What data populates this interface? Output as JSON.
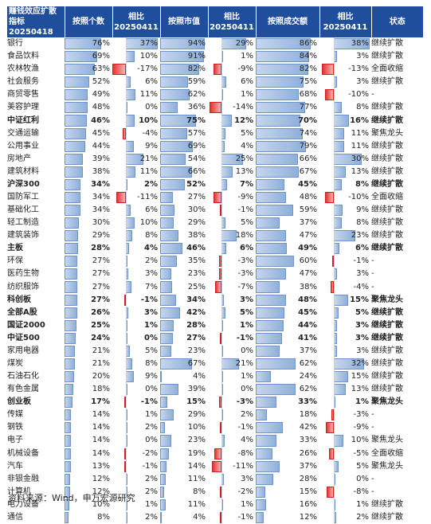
{
  "headers": [
    "赚钱效应扩散指标\n20250418",
    "按照个数",
    "相比\n20250411",
    "按照市值",
    "相比\n20250411",
    "按照成交额",
    "相比\n20250411",
    "状态"
  ],
  "rows": [
    {
      "name": "银行",
      "c": "76%",
      "cd": "37%",
      "m": "94%",
      "md": "29%",
      "t": "86%",
      "td": "38%",
      "s": "继续扩散",
      "b": false
    },
    {
      "name": "食品饮料",
      "c": "69%",
      "cd": "10%",
      "m": "91%",
      "md": "1%",
      "t": "84%",
      "td": "3%",
      "s": "继续扩散",
      "b": false
    },
    {
      "name": "农林牧渔",
      "c": "63%",
      "cd": "-17%",
      "m": "82%",
      "md": "-9%",
      "t": "82%",
      "td": "-13%",
      "s": "全面收缩",
      "b": false
    },
    {
      "name": "社会服务",
      "c": "52%",
      "cd": "6%",
      "m": "59%",
      "md": "6%",
      "t": "75%",
      "td": "3%",
      "s": "继续扩散",
      "b": false
    },
    {
      "name": "商贸零售",
      "c": "49%",
      "cd": "11%",
      "m": "62%",
      "md": "1%",
      "t": "68%",
      "td": "-10%",
      "s": "-",
      "b": false
    },
    {
      "name": "美容护理",
      "c": "48%",
      "cd": "0%",
      "m": "36%",
      "md": "-14%",
      "t": "77%",
      "td": "8%",
      "s": "继续扩散",
      "b": false
    },
    {
      "name": "中证红利",
      "c": "46%",
      "cd": "10%",
      "m": "75%",
      "md": "12%",
      "t": "70%",
      "td": "16%",
      "s": "继续扩散",
      "b": true
    },
    {
      "name": "交通运输",
      "c": "45%",
      "cd": "-4%",
      "m": "57%",
      "md": "5%",
      "t": "74%",
      "td": "11%",
      "s": "聚焦龙头",
      "b": false
    },
    {
      "name": "公用事业",
      "c": "44%",
      "cd": "9%",
      "m": "69%",
      "md": "4%",
      "t": "79%",
      "td": "11%",
      "s": "继续扩散",
      "b": false
    },
    {
      "name": "房地产",
      "c": "39%",
      "cd": "21%",
      "m": "54%",
      "md": "25%",
      "t": "66%",
      "td": "30%",
      "s": "继续扩散",
      "b": false
    },
    {
      "name": "建筑材料",
      "c": "38%",
      "cd": "11%",
      "m": "66%",
      "md": "13%",
      "t": "67%",
      "td": "13%",
      "s": "继续扩散",
      "b": false
    },
    {
      "name": "沪深300",
      "c": "34%",
      "cd": "2%",
      "m": "52%",
      "md": "7%",
      "t": "45%",
      "td": "8%",
      "s": "继续扩散",
      "b": true
    },
    {
      "name": "国防军工",
      "c": "34%",
      "cd": "-11%",
      "m": "27%",
      "md": "-9%",
      "t": "48%",
      "td": "-10%",
      "s": "全面收缩",
      "b": false
    },
    {
      "name": "基础化工",
      "c": "34%",
      "cd": "6%",
      "m": "30%",
      "md": "-1%",
      "t": "59%",
      "td": "9%",
      "s": "继续扩散",
      "b": false
    },
    {
      "name": "轻工制造",
      "c": "30%",
      "cd": "10%",
      "m": "29%",
      "md": "5%",
      "t": "37%",
      "td": "8%",
      "s": "继续扩散",
      "b": false
    },
    {
      "name": "建筑装饰",
      "c": "29%",
      "cd": "8%",
      "m": "38%",
      "md": "18%",
      "t": "47%",
      "td": "23%",
      "s": "继续扩散",
      "b": false
    },
    {
      "name": "主板",
      "c": "28%",
      "cd": "4%",
      "m": "46%",
      "md": "6%",
      "t": "49%",
      "td": "6%",
      "s": "继续扩散",
      "b": true
    },
    {
      "name": "环保",
      "c": "27%",
      "cd": "2%",
      "m": "35%",
      "md": "-3%",
      "t": "60%",
      "td": "-1%",
      "s": "-",
      "b": false
    },
    {
      "name": "医药生物",
      "c": "27%",
      "cd": "3%",
      "m": "23%",
      "md": "-3%",
      "t": "47%",
      "td": "3%",
      "s": "-",
      "b": false
    },
    {
      "name": "纺织服饰",
      "c": "27%",
      "cd": "7%",
      "m": "25%",
      "md": "-7%",
      "t": "38%",
      "td": "-4%",
      "s": "-",
      "b": false
    },
    {
      "name": "科创板",
      "c": "27%",
      "cd": "-1%",
      "m": "34%",
      "md": "3%",
      "t": "48%",
      "td": "15%",
      "s": "聚焦龙头",
      "b": true
    },
    {
      "name": "全部A股",
      "c": "26%",
      "cd": "3%",
      "m": "42%",
      "md": "5%",
      "t": "45%",
      "td": "5%",
      "s": "继续扩散",
      "b": true
    },
    {
      "name": "国证2000",
      "c": "25%",
      "cd": "1%",
      "m": "28%",
      "md": "1%",
      "t": "44%",
      "td": "3%",
      "s": "继续扩散",
      "b": true
    },
    {
      "name": "中证500",
      "c": "24%",
      "cd": "0%",
      "m": "27%",
      "md": "-1%",
      "t": "41%",
      "td": "3%",
      "s": "继续扩散",
      "b": true
    },
    {
      "name": "家用电器",
      "c": "21%",
      "cd": "5%",
      "m": "23%",
      "md": "0%",
      "t": "37%",
      "td": "3%",
      "s": "继续扩散",
      "b": false
    },
    {
      "name": "煤炭",
      "c": "21%",
      "cd": "8%",
      "m": "67%",
      "md": "21%",
      "t": "62%",
      "td": "32%",
      "s": "继续扩散",
      "b": false
    },
    {
      "name": "石油石化",
      "c": "20%",
      "cd": "9%",
      "m": "4%",
      "md": "1%",
      "t": "24%",
      "td": "15%",
      "s": "继续扩散",
      "b": false
    },
    {
      "name": "有色金属",
      "c": "18%",
      "cd": "0%",
      "m": "39%",
      "md": "0%",
      "t": "62%",
      "td": "13%",
      "s": "继续扩散",
      "b": false
    },
    {
      "name": "创业板",
      "c": "17%",
      "cd": "-1%",
      "m": "15%",
      "md": "-3%",
      "t": "33%",
      "td": "1%",
      "s": "聚焦龙头",
      "b": true
    },
    {
      "name": "传媒",
      "c": "14%",
      "cd": "1%",
      "m": "29%",
      "md": "2%",
      "t": "18%",
      "td": "-3%",
      "s": "-",
      "b": false
    },
    {
      "name": "钢铁",
      "c": "14%",
      "cd": "2%",
      "m": "10%",
      "md": "-1%",
      "t": "42%",
      "td": "-9%",
      "s": "-",
      "b": false
    },
    {
      "name": "电子",
      "c": "14%",
      "cd": "0%",
      "m": "23%",
      "md": "4%",
      "t": "33%",
      "td": "10%",
      "s": "聚焦龙头",
      "b": false
    },
    {
      "name": "机械设备",
      "c": "14%",
      "cd": "-2%",
      "m": "19%",
      "md": "-8%",
      "t": "26%",
      "td": "-5%",
      "s": "全面收缩",
      "b": false
    },
    {
      "name": "汽车",
      "c": "13%",
      "cd": "-1%",
      "m": "14%",
      "md": "-11%",
      "t": "37%",
      "td": "5%",
      "s": "聚焦龙头",
      "b": false
    },
    {
      "name": "非银金融",
      "c": "12%",
      "cd": "2%",
      "m": "11%",
      "md": "3%",
      "t": "28%",
      "td": "0%",
      "s": "-",
      "b": false
    },
    {
      "name": "计算机",
      "c": "12%",
      "cd": "2%",
      "m": "8%",
      "md": "-2%",
      "t": "15%",
      "td": "-8%",
      "s": "-",
      "b": false
    },
    {
      "name": "电力设备",
      "c": "10%",
      "cd": "1%",
      "m": "11%",
      "md": "1%",
      "t": "16%",
      "td": "1%",
      "s": "继续扩散",
      "b": false
    },
    {
      "name": "通信",
      "c": "8%",
      "cd": "2%",
      "m": "4%",
      "md": "-1%",
      "t": "12%",
      "td": "2%",
      "s": "继续扩散",
      "b": false
    }
  ],
  "source": "资料来源：Wind，申万宏源研究"
}
